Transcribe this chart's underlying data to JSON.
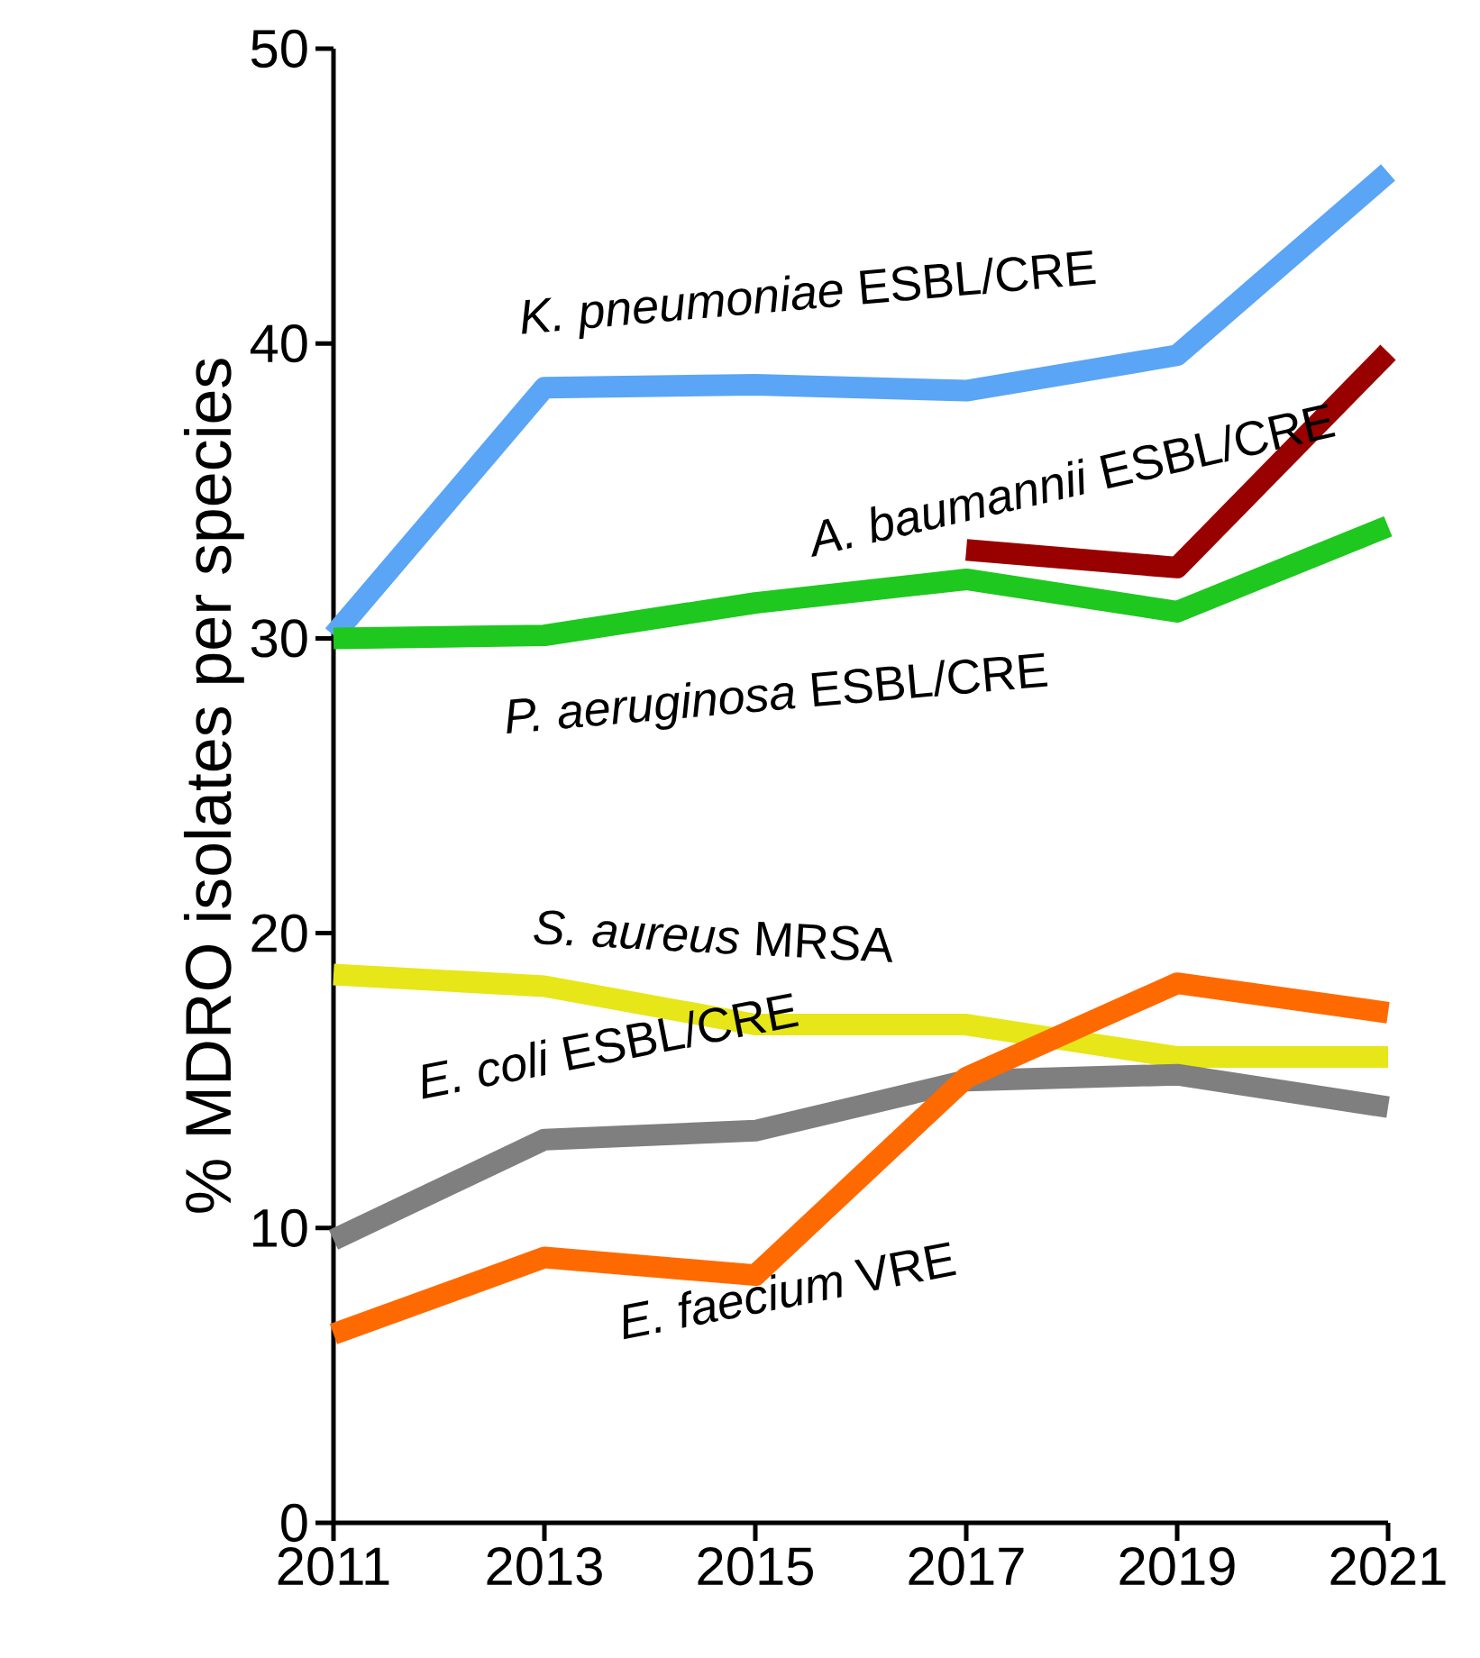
{
  "chart_data": {
    "type": "line",
    "ylabel": "% MDRO isolates per species",
    "x": [
      2011,
      2013,
      2015,
      2017,
      2019,
      2021
    ],
    "xlim": [
      2011,
      2021
    ],
    "xticks": [
      2011,
      2013,
      2015,
      2017,
      2019,
      2021
    ],
    "ylim": [
      0,
      50
    ],
    "yticks": [
      0,
      10,
      20,
      30,
      40,
      50
    ],
    "grid": false,
    "legend": false,
    "marker": "none",
    "line_style": "solid",
    "series": [
      {
        "name": "*K. pneumoniae* ESBL/CRE",
        "color": "#5aa5f5",
        "values": [
          30.1,
          38.5,
          38.6,
          38.4,
          39.6,
          45.8
        ]
      },
      {
        "name": "*A. baumannii* ESBL/CRE",
        "color": "#990000",
        "values": [
          null,
          null,
          null,
          33.0,
          32.4,
          39.7
        ]
      },
      {
        "name": "*P. aeruginosa* ESBL/CRE",
        "color": "#1ec81e",
        "values": [
          30.0,
          30.1,
          31.2,
          32.0,
          30.9,
          33.8
        ]
      },
      {
        "name": "*S. aureus* MRSA",
        "color": "#e6e619",
        "values": [
          18.6,
          18.2,
          16.9,
          16.9,
          15.8,
          15.8
        ]
      },
      {
        "name": "*E. coli* ESBL/CRE",
        "color": "#7f7f7f",
        "values": [
          9.6,
          13.0,
          13.3,
          15.0,
          15.2,
          14.1
        ]
      },
      {
        "name": "*E. faecium* VRE",
        "color": "#ff6a00",
        "values": [
          6.4,
          9.0,
          8.4,
          15.1,
          18.3,
          17.3
        ]
      }
    ]
  }
}
